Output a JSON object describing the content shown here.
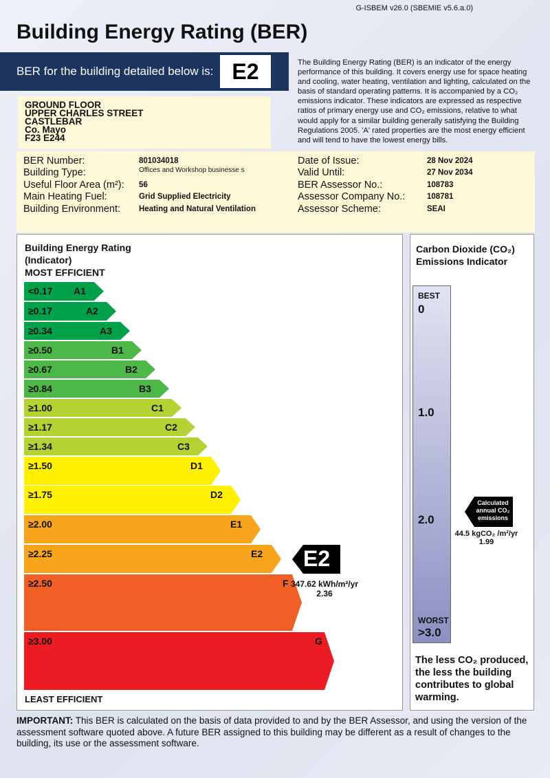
{
  "version": "G-ISBEM v26.0 (SBEMIE v5.6.a.0)",
  "title": "Building Energy Rating (BER)",
  "ber_banner": {
    "label": "BER for the building detailed below is:",
    "rating": "E2"
  },
  "intro": "The Building Energy Rating (BER) is an indicator of the energy performance of this building. It covers energy use for space heating and cooling, water heating, ventilation and lighting, calculated on the basis of standard operating patterns. It is accompanied by a CO₂ emissions indicator. These indicators are expressed as respective ratios of primary energy use and CO₂ emissions, relative to what would apply for a similar building generally satisfying the Building Regulations 2005. 'A' rated properties are the most energy efficient and will tend to have the lowest energy bills.",
  "address": [
    "GROUND FLOOR",
    "UPPER CHARLES STREET",
    "CASTLEBAR",
    "Co. Mayo",
    "F23 E244"
  ],
  "details_left": [
    {
      "label": "BER Number:",
      "value": "801034018"
    },
    {
      "label": "Building Type:",
      "value": "Offices and Workshop businesse s"
    },
    {
      "label": "Useful Floor Area (m²):",
      "value": "56"
    },
    {
      "label": "Main Heating Fuel:",
      "value": "Grid Supplied Electricity"
    },
    {
      "label": "Building Environment:",
      "value": "Heating and Natural Ventilation"
    }
  ],
  "details_right": [
    {
      "label": "Date of Issue:",
      "value": "28 Nov 2024"
    },
    {
      "label": "Valid Until:",
      "value": "27 Nov 2034"
    },
    {
      "label": "BER Assessor No.:",
      "value": "108783"
    },
    {
      "label": "Assessor Company No.:",
      "value": "108781"
    },
    {
      "label": "Assessor Scheme:",
      "value": "SEAI"
    }
  ],
  "rating": {
    "heading1": "Building Energy Rating",
    "heading2": "(Indicator)",
    "most": "MOST EFFICIENT",
    "least": "LEAST EFFICIENT",
    "bands": [
      {
        "range": "<0.17",
        "letter": "A1",
        "color": "#00a14b"
      },
      {
        "range": "≥0.17",
        "letter": "A2",
        "color": "#00a14b"
      },
      {
        "range": "≥0.34",
        "letter": "A3",
        "color": "#00a14b"
      },
      {
        "range": "≥0.50",
        "letter": "B1",
        "color": "#4db847"
      },
      {
        "range": "≥0.67",
        "letter": "B2",
        "color": "#4db847"
      },
      {
        "range": "≥0.84",
        "letter": "B3",
        "color": "#4db847"
      },
      {
        "range": "≥1.00",
        "letter": "C1",
        "color": "#b3d234"
      },
      {
        "range": "≥1.17",
        "letter": "C2",
        "color": "#b3d234"
      },
      {
        "range": "≥1.34",
        "letter": "C3",
        "color": "#b3d234"
      },
      {
        "range": "≥1.50",
        "letter": "D1",
        "color": "#fff100"
      },
      {
        "range": "≥1.75",
        "letter": "D2",
        "color": "#fff100"
      },
      {
        "range": "≥2.00",
        "letter": "E1",
        "color": "#f7a51c"
      },
      {
        "range": "≥2.25",
        "letter": "E2",
        "color": "#f7a51c"
      },
      {
        "range": "≥2.50",
        "letter": "F",
        "color": "#ef5f26"
      },
      {
        "range": "≥3.00",
        "letter": "G",
        "color": "#ec1c24"
      }
    ],
    "indicator": {
      "label": "E2",
      "value": "347.62 kWh/m²/yr",
      "ratio": "2.36"
    }
  },
  "co2": {
    "heading": "Carbon Dioxide (CO₂)",
    "heading2": "Emissions Indicator",
    "best": "BEST",
    "worst": "WORST",
    "ticks": [
      "0",
      "1.0",
      "2.0",
      ">3.0"
    ],
    "pointer": "Calculated annual CO₂ emissions",
    "value": "44.5 kgCO₂ /m²/yr",
    "ratio": "1.99",
    "footer": "The less CO₂ produced, the less the building contributes to global warming."
  },
  "important": {
    "label": "IMPORTANT:",
    "text": " This BER is calculated on the basis of data provided to and by the BER Assessor, and using the version of the assessment software quoted above. A future BER assigned to this building may be different as a result of changes to the building, its use or the assessment software."
  }
}
